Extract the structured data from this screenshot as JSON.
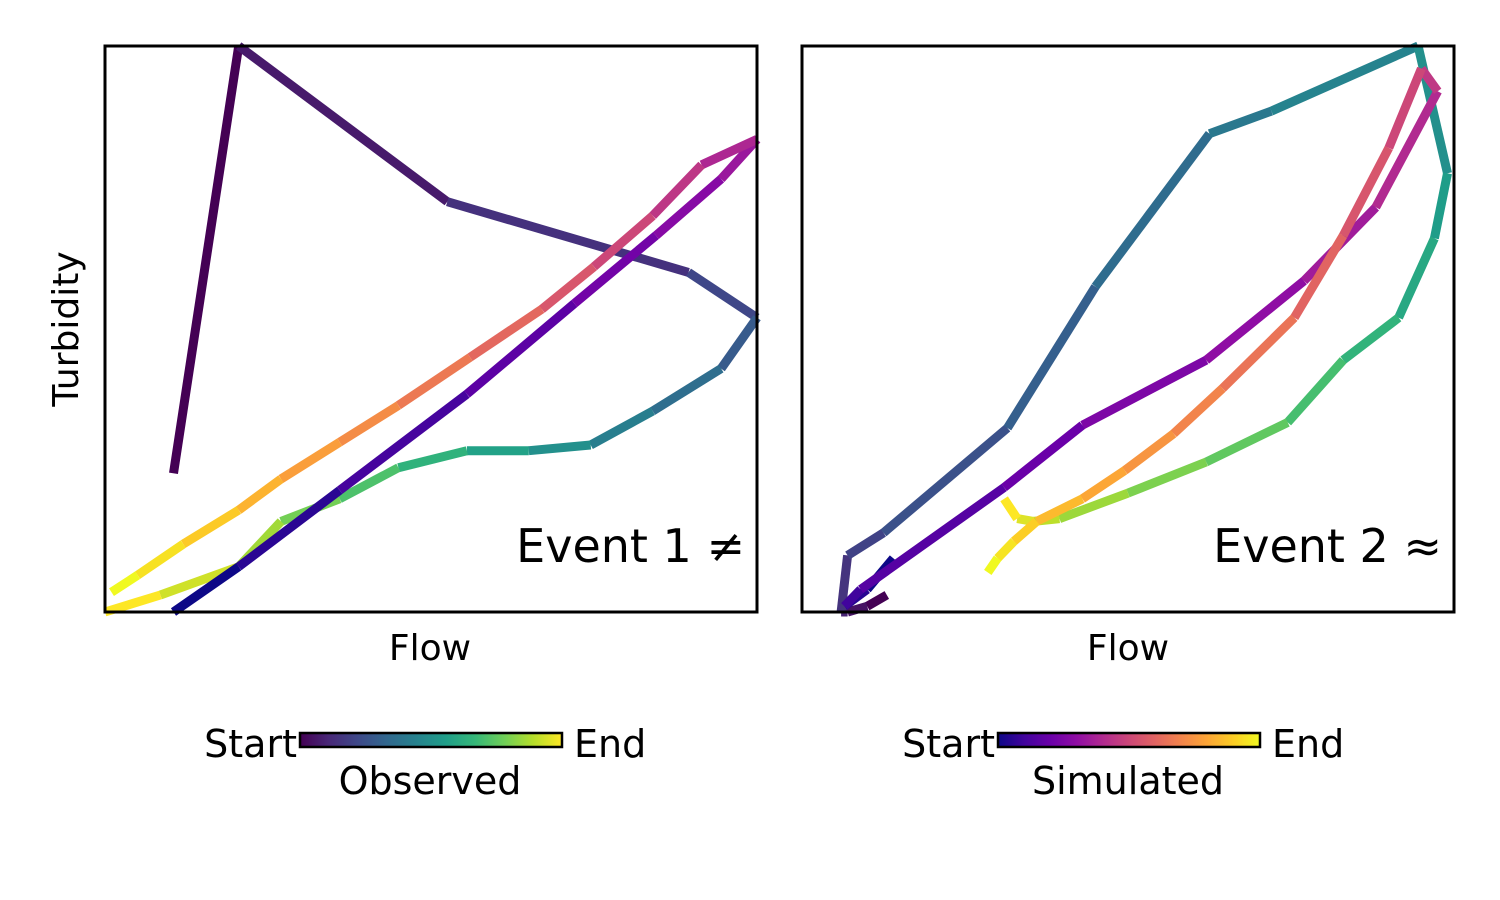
{
  "chart_data": [
    {
      "type": "line",
      "panel": "left",
      "xlabel": "Flow",
      "ylabel": "Turbidity",
      "annotation": "Event 1 ≠",
      "xlim": [
        0,
        1
      ],
      "ylim": [
        0,
        1
      ],
      "x_ticks_shown": false,
      "y_ticks_shown": false,
      "series": [
        {
          "colormap": "viridis",
          "x": [
            0.105,
            0.205,
            0.525,
            0.895,
            1.0,
            0.945,
            0.84,
            0.745,
            0.65,
            0.555,
            0.45,
            0.36,
            0.27,
            0.205,
            0.085,
            0.0
          ],
          "y": [
            0.245,
            1.0,
            0.725,
            0.6,
            0.52,
            0.43,
            0.355,
            0.295,
            0.285,
            0.285,
            0.255,
            0.2,
            0.16,
            0.08,
            0.03,
            0.0
          ]
        },
        {
          "colormap": "plasma",
          "x": [
            0.105,
            0.205,
            0.36,
            0.555,
            0.72,
            0.845,
            0.945,
            1.0,
            0.915,
            0.84,
            0.75,
            0.67,
            0.56,
            0.45,
            0.36,
            0.27,
            0.205,
            0.12,
            0.05,
            0.01
          ],
          "y": [
            0.0,
            0.08,
            0.215,
            0.385,
            0.545,
            0.665,
            0.765,
            0.835,
            0.79,
            0.7,
            0.61,
            0.535,
            0.45,
            0.365,
            0.3,
            0.235,
            0.18,
            0.12,
            0.065,
            0.035
          ]
        }
      ]
    },
    {
      "type": "line",
      "panel": "right",
      "xlabel": "Flow",
      "annotation": "Event 2 ≈",
      "xlim": [
        0,
        1
      ],
      "ylim": [
        0,
        1
      ],
      "x_ticks_shown": false,
      "y_ticks_shown": false,
      "series": [
        {
          "colormap": "viridis",
          "x": [
            0.13,
            0.1,
            0.07,
            0.06,
            0.07,
            0.125,
            0.315,
            0.45,
            0.625,
            0.72,
            0.945,
            0.99,
            0.97,
            0.915,
            0.83,
            0.745,
            0.62,
            0.5,
            0.395,
            0.355,
            0.33,
            0.31
          ],
          "y": [
            0.03,
            0.01,
            0.0,
            0.0,
            0.1,
            0.14,
            0.325,
            0.575,
            0.845,
            0.885,
            1.0,
            0.775,
            0.66,
            0.52,
            0.445,
            0.335,
            0.265,
            0.21,
            0.165,
            0.16,
            0.165,
            0.2
          ]
        },
        {
          "colormap": "plasma",
          "x": [
            0.14,
            0.1,
            0.065,
            0.09,
            0.31,
            0.43,
            0.62,
            0.77,
            0.88,
            0.975,
            0.95,
            0.9,
            0.83,
            0.755,
            0.645,
            0.57,
            0.495,
            0.43,
            0.36,
            0.325,
            0.3,
            0.285
          ],
          "y": [
            0.095,
            0.04,
            0.01,
            0.04,
            0.22,
            0.33,
            0.445,
            0.585,
            0.715,
            0.92,
            0.96,
            0.82,
            0.665,
            0.52,
            0.395,
            0.315,
            0.25,
            0.2,
            0.16,
            0.125,
            0.095,
            0.07
          ]
        }
      ]
    }
  ],
  "colorbars": [
    {
      "start_label": "Start",
      "end_label": "End",
      "title": "Observed",
      "colormap": "viridis"
    },
    {
      "start_label": "Start",
      "end_label": "End",
      "title": "Simulated",
      "colormap": "plasma"
    }
  ]
}
